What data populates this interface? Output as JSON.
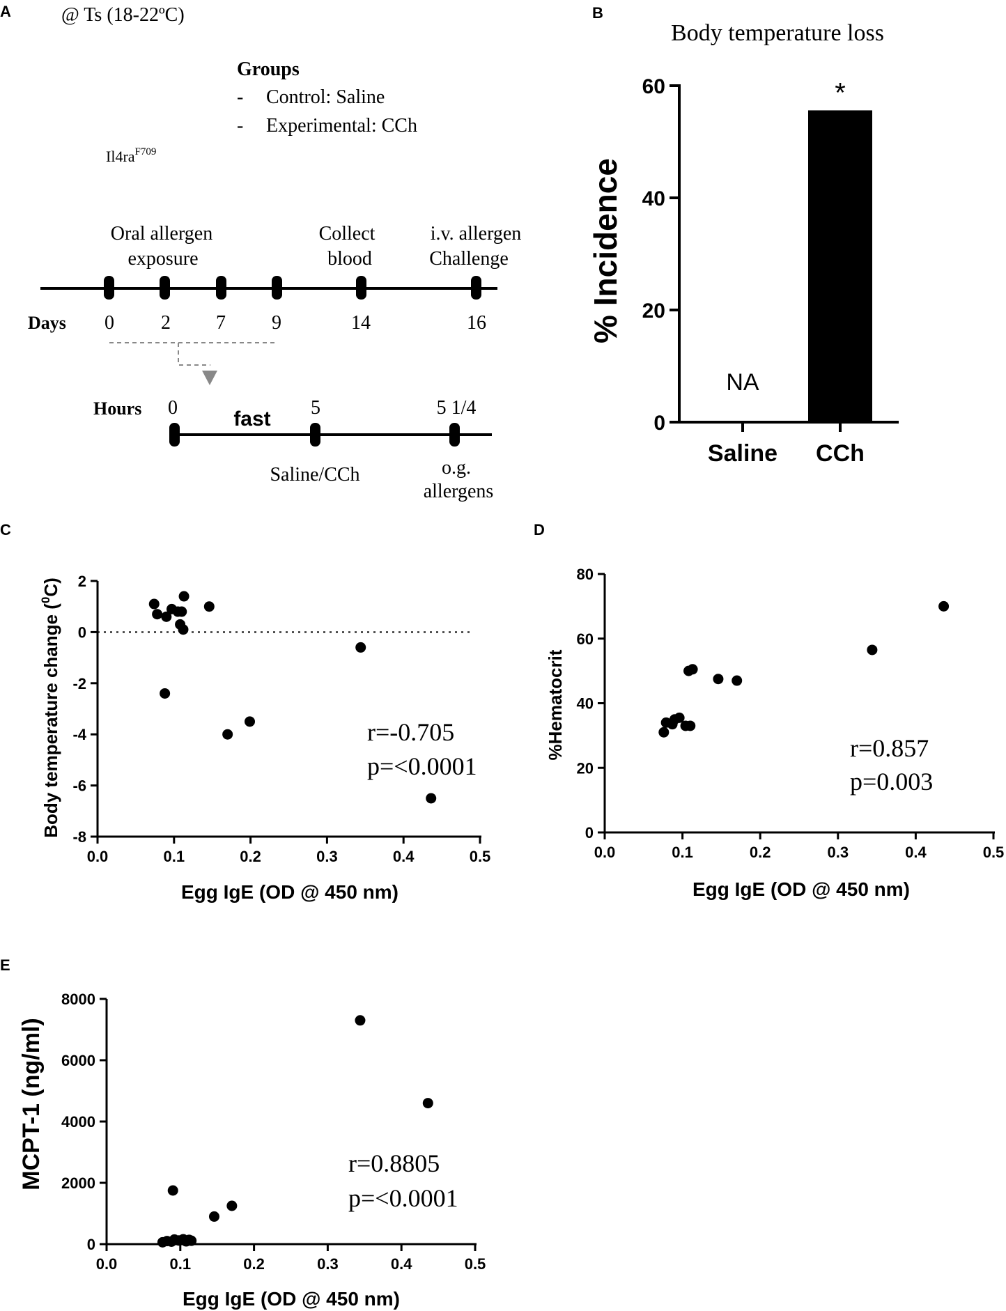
{
  "panel_labels": {
    "a": "A",
    "b": "B",
    "c": "C",
    "d": "D",
    "e": "E"
  },
  "panel_a": {
    "condition": "@ Ts (18-22ºC)",
    "groups_title": "Groups",
    "group_dash": "-",
    "groups": [
      "Control: Saline",
      "Experimental: CCh"
    ],
    "strain": "Il4ra",
    "strain_sup": "F709",
    "events": {
      "oral_line1": "Oral allergen",
      "oral_line2": "exposure",
      "collect_line1": "Collect",
      "collect_line2": "blood",
      "iv_line1": "i.v. allergen",
      "iv_line2": "Challenge"
    },
    "days_label": "Days",
    "days": [
      "0",
      "2",
      "7",
      "9",
      "14",
      "16"
    ],
    "hours_label": "Hours",
    "hours": [
      "0",
      "5",
      "5 1/4"
    ],
    "fast_label": "fast",
    "treat_label": "Saline/CCh",
    "og_line1": "o.g.",
    "og_line2": "allergens"
  },
  "chart_data": [
    {
      "id": "B",
      "type": "bar",
      "title": "Body temperature loss",
      "ylabel": "% Incidence",
      "ylim": [
        0,
        60
      ],
      "yticks": [
        "0",
        "20",
        "40",
        "60"
      ],
      "categories": [
        "Saline",
        "CCh"
      ],
      "values": [
        0,
        55.6
      ],
      "value_notes": [
        "NA",
        ""
      ],
      "significance": [
        "",
        "*"
      ]
    },
    {
      "id": "C",
      "type": "scatter",
      "xlabel": "Egg IgE (OD @ 450 nm)",
      "ylabel": "Body temperature change (",
      "ylabel_sup": "0",
      "ylabel_tail": "C)",
      "xlim": [
        0.0,
        0.5
      ],
      "ylim": [
        -8,
        2
      ],
      "xticks": [
        "0.0",
        "0.1",
        "0.2",
        "0.3",
        "0.4",
        "0.5"
      ],
      "yticks": [
        "-8",
        "-6",
        "-4",
        "-2",
        "0",
        "2"
      ],
      "reference_line_y": 0,
      "annotation": [
        "r=-0.705",
        "p=<0.0001"
      ],
      "x": [
        0.074,
        0.078,
        0.09,
        0.097,
        0.105,
        0.108,
        0.11,
        0.112,
        0.113,
        0.088,
        0.146,
        0.17,
        0.199,
        0.344,
        0.436
      ],
      "y": [
        1.1,
        0.7,
        0.6,
        0.9,
        0.8,
        0.3,
        0.8,
        0.1,
        1.4,
        -2.4,
        1.0,
        -4.0,
        -3.5,
        -0.6,
        -6.5
      ]
    },
    {
      "id": "D",
      "type": "scatter",
      "xlabel": "Egg IgE (OD @ 450 nm)",
      "ylabel": "%Hematocrit",
      "xlim": [
        0.0,
        0.5
      ],
      "ylim": [
        0,
        80
      ],
      "xticks": [
        "0.0",
        "0.1",
        "0.2",
        "0.3",
        "0.4",
        "0.5"
      ],
      "yticks": [
        "0",
        "20",
        "40",
        "60",
        "80"
      ],
      "annotation": [
        "r=0.857",
        "p=0.003"
      ],
      "x": [
        0.076,
        0.079,
        0.087,
        0.09,
        0.096,
        0.104,
        0.108,
        0.11,
        0.113,
        0.146,
        0.17,
        0.344,
        0.436
      ],
      "y": [
        31,
        34,
        33.5,
        35,
        35.5,
        33,
        50,
        33,
        50.5,
        47.5,
        47,
        56.5,
        70
      ]
    },
    {
      "id": "E",
      "type": "scatter",
      "xlabel": "Egg IgE (OD @ 450 nm)",
      "ylabel": "MCPT-1 (ng/ml)",
      "xlim": [
        0.0,
        0.5
      ],
      "ylim": [
        0,
        8000
      ],
      "xticks": [
        "0.0",
        "0.1",
        "0.2",
        "0.3",
        "0.4",
        "0.5"
      ],
      "yticks": [
        "0",
        "2000",
        "4000",
        "6000",
        "8000"
      ],
      "annotation": [
        "r=0.8805",
        "p=<0.0001"
      ],
      "x": [
        0.076,
        0.082,
        0.088,
        0.092,
        0.098,
        0.104,
        0.108,
        0.112,
        0.115,
        0.09,
        0.146,
        0.17,
        0.344,
        0.436
      ],
      "y": [
        60,
        100,
        80,
        150,
        120,
        160,
        90,
        140,
        110,
        1750,
        900,
        1250,
        7300,
        4600
      ]
    }
  ]
}
